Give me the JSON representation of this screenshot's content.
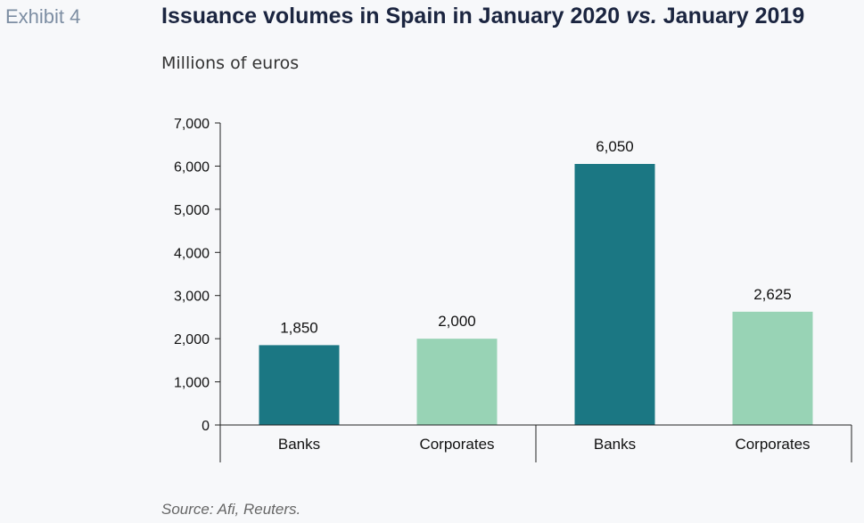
{
  "header": {
    "exhibit": "Exhibit 4",
    "title_main": "Issuance volumes in Spain in January 2020 ",
    "title_vs": "vs.",
    "title_tail": " January 2019",
    "subtitle": "Millions of euros"
  },
  "source": "Source: Afi, Reuters.",
  "chart_data": {
    "type": "bar",
    "title": "Issuance volumes in Spain in January 2020 vs. January 2019",
    "ylabel": "Millions of euros",
    "ylim": [
      0,
      7000
    ],
    "yticks": [
      0,
      1000,
      2000,
      3000,
      4000,
      5000,
      6000,
      7000
    ],
    "ytick_labels": [
      "0",
      "1,000",
      "2,000",
      "3,000",
      "4,000",
      "5,000",
      "6,000",
      "7,000"
    ],
    "categories": [
      "Banks",
      "Corporates",
      "Banks",
      "Corporates"
    ],
    "values": [
      1850,
      2000,
      6050,
      2625
    ],
    "value_labels": [
      "1,850",
      "2,000",
      "6,050",
      "2,625"
    ],
    "bar_colors": [
      "#1b7783",
      "#98d3b5",
      "#1b7783",
      "#98d3b5"
    ],
    "grid": false
  }
}
